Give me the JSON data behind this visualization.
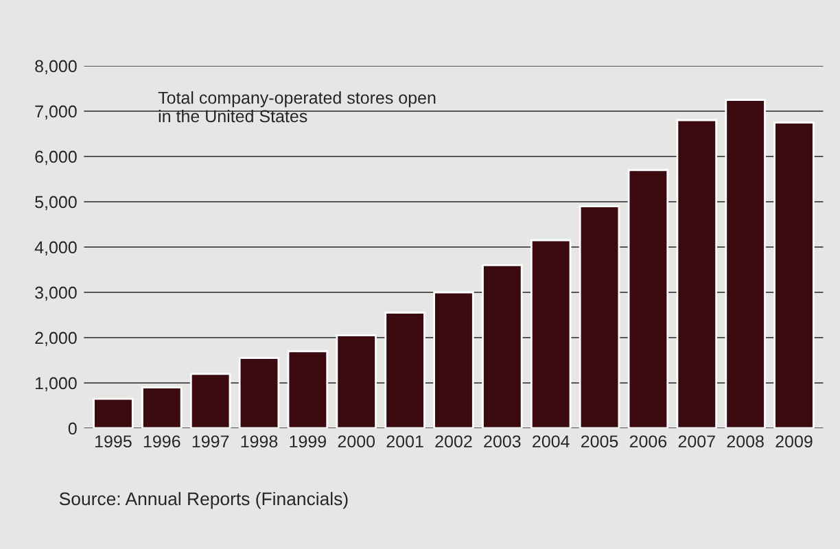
{
  "chart_data": {
    "type": "bar",
    "categories": [
      "1995",
      "1996",
      "1997",
      "1998",
      "1999",
      "2000",
      "2001",
      "2002",
      "2003",
      "2004",
      "2005",
      "2006",
      "2007",
      "2008",
      "2009"
    ],
    "values": [
      650,
      900,
      1200,
      1550,
      1700,
      2050,
      2550,
      3000,
      3600,
      4150,
      4900,
      5700,
      6800,
      7250,
      6750
    ],
    "color": "#3a0a0f",
    "ylim": [
      0,
      8000
    ],
    "yticks": [
      {
        "value": 0,
        "label": "0"
      },
      {
        "value": 1000,
        "label": "1,000"
      },
      {
        "value": 2000,
        "label": "2,000"
      },
      {
        "value": 3000,
        "label": "3,000"
      },
      {
        "value": 4000,
        "label": "4,000"
      },
      {
        "value": 5000,
        "label": "5,000"
      },
      {
        "value": 6000,
        "label": "6,000"
      },
      {
        "value": 7000,
        "label": "7,000"
      },
      {
        "value": 8000,
        "label": "8,000"
      }
    ],
    "grid": "y",
    "annotations": [
      "Total company-operated stores open\nin the United States",
      "Source: Annual Reports (Financials)"
    ]
  }
}
